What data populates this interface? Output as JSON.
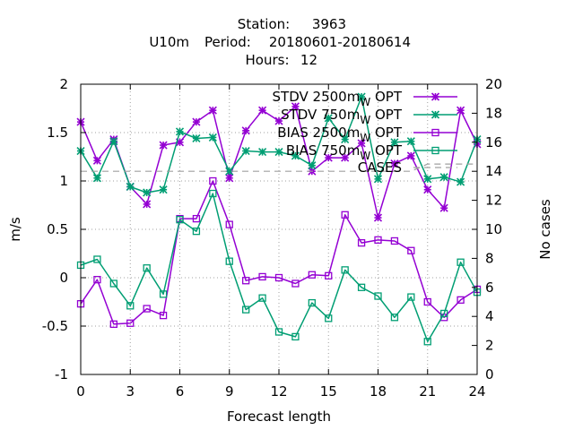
{
  "chart_data": {
    "type": "line",
    "title": {
      "line1_label": "Station:",
      "line1_value": "3963",
      "line2_param": "U10m",
      "line2_label": "Period:",
      "line2_value": "20180601-20180614",
      "line3_label": "Hours:",
      "line3_value": "12"
    },
    "xlabel": "Forecast length",
    "ylabel": "m/s",
    "y2label": "No cases",
    "xlim": [
      0,
      24
    ],
    "ylim": [
      -1,
      2
    ],
    "y2lim": [
      0,
      20
    ],
    "xticks": [
      "0",
      "3",
      "6",
      "9",
      "12",
      "15",
      "18",
      "21",
      "24"
    ],
    "yticks": [
      "-1",
      "-0.5",
      "0",
      "0.5",
      "1",
      "1.5",
      "2"
    ],
    "y2ticks": [
      "0",
      "2",
      "4",
      "6",
      "8",
      "10",
      "12",
      "14",
      "16",
      "18",
      "20"
    ],
    "grid": true,
    "legend_position": "top-right",
    "x": [
      0,
      1,
      2,
      3,
      4,
      5,
      6,
      7,
      8,
      9,
      10,
      11,
      12,
      13,
      14,
      15,
      16,
      17,
      18,
      19,
      20,
      21,
      22,
      23,
      24
    ],
    "series": [
      {
        "name": "STDV 2500m_W OPT",
        "legend_main": "STDV 2500m",
        "legend_sub": "W",
        "legend_tail": " OPT",
        "color": "#9400d3",
        "marker": "x",
        "axis": "y1",
        "values": [
          1.61,
          1.21,
          1.43,
          0.94,
          0.76,
          1.37,
          1.4,
          1.61,
          1.73,
          1.03,
          1.52,
          1.73,
          1.62,
          1.77,
          1.1,
          1.24,
          1.24,
          1.39,
          0.62,
          1.18,
          1.26,
          0.91,
          0.72,
          1.73,
          1.38
        ]
      },
      {
        "name": "STDV 750m_W OPT",
        "legend_main": "STDV 750m",
        "legend_sub": "W",
        "legend_tail": " OPT",
        "color": "#009e73",
        "marker": "x",
        "axis": "y1",
        "values": [
          1.31,
          1.03,
          1.41,
          0.94,
          0.88,
          0.91,
          1.51,
          1.44,
          1.45,
          1.1,
          1.31,
          1.3,
          1.3,
          1.26,
          1.16,
          1.65,
          1.43,
          1.87,
          1.02,
          1.4,
          1.41,
          1.02,
          1.04,
          0.99,
          1.43
        ]
      },
      {
        "name": "BIAS 2500m_W OPT",
        "legend_main": "BIAS 2500m",
        "legend_sub": "W",
        "legend_tail": " OPT",
        "color": "#9400d3",
        "marker": "square",
        "axis": "y1",
        "values": [
          -0.27,
          -0.02,
          -0.48,
          -0.47,
          -0.32,
          -0.39,
          0.61,
          0.61,
          1.0,
          0.55,
          -0.03,
          0.01,
          0.0,
          -0.06,
          0.03,
          0.02,
          0.65,
          0.36,
          0.39,
          0.38,
          0.28,
          -0.25,
          -0.41,
          -0.23,
          -0.12
        ]
      },
      {
        "name": "BIAS 750m_W OPT",
        "legend_main": "BIAS 750m",
        "legend_sub": "W",
        "legend_tail": " OPT",
        "color": "#009e73",
        "marker": "square",
        "axis": "y1",
        "values": [
          0.13,
          0.19,
          -0.06,
          -0.29,
          0.1,
          -0.17,
          0.6,
          0.48,
          0.87,
          0.17,
          -0.33,
          -0.21,
          -0.56,
          -0.61,
          -0.26,
          -0.42,
          0.08,
          -0.1,
          -0.19,
          -0.41,
          -0.2,
          -0.66,
          -0.37,
          0.16,
          -0.15
        ]
      },
      {
        "name": "CASES",
        "legend_main": "CASES",
        "color": "#a0a0a0",
        "dash": "dashed",
        "axis": "y2",
        "values": [
          14,
          14,
          14,
          14,
          14,
          14,
          14,
          14,
          14,
          14,
          14,
          14,
          14,
          14,
          14,
          14,
          14,
          14,
          14,
          14,
          14,
          14.5,
          14.5,
          14.5,
          14.5
        ]
      }
    ]
  }
}
